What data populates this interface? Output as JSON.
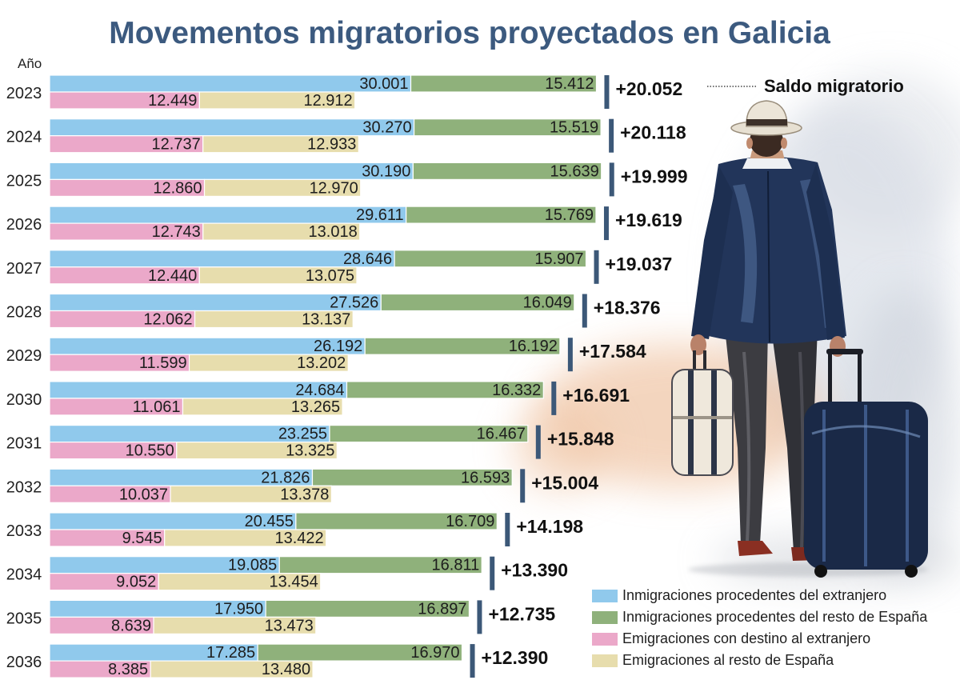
{
  "chart_data": {
    "type": "bar",
    "orientation": "horizontal",
    "stacked": true,
    "title": "Movementos migratorios proyectados en Galicia",
    "ylabel": "Año",
    "categories": [
      "2023",
      "2024",
      "2025",
      "2026",
      "2027",
      "2028",
      "2029",
      "2030",
      "2031",
      "2032",
      "2033",
      "2034",
      "2035",
      "2036"
    ],
    "series": [
      {
        "name": "Inmigraciones procedentes del extranjero",
        "color": "#90c9ec",
        "values": [
          30001,
          30270,
          30190,
          29611,
          28646,
          27526,
          26192,
          24684,
          23255,
          21826,
          20455,
          19085,
          17950,
          17285
        ]
      },
      {
        "name": "Inmigraciones procedentes del resto de España",
        "color": "#8fb17b",
        "values": [
          15412,
          15519,
          15639,
          15769,
          15907,
          16049,
          16192,
          16332,
          16467,
          16593,
          16709,
          16811,
          16897,
          16970
        ]
      },
      {
        "name": "Emigraciones con destino al extranjero",
        "color": "#eba8c9",
        "values": [
          12449,
          12737,
          12860,
          12743,
          12440,
          12062,
          11599,
          11061,
          10550,
          10037,
          9545,
          9052,
          8639,
          8385
        ]
      },
      {
        "name": "Emigraciones al resto de España",
        "color": "#e7ddad",
        "values": [
          12912,
          12933,
          12970,
          13018,
          13075,
          13137,
          13202,
          13265,
          13325,
          13378,
          13422,
          13454,
          13473,
          13480
        ]
      }
    ],
    "saldo": {
      "name": "Saldo migratorio",
      "color": "#3c5878",
      "values": [
        20052,
        20118,
        19999,
        19619,
        19037,
        18376,
        17584,
        16691,
        15848,
        15004,
        14198,
        13390,
        12735,
        12390
      ]
    },
    "legend_position": "bottom-right",
    "grid": false
  },
  "colors": {
    "title": "#3c5a7f"
  }
}
